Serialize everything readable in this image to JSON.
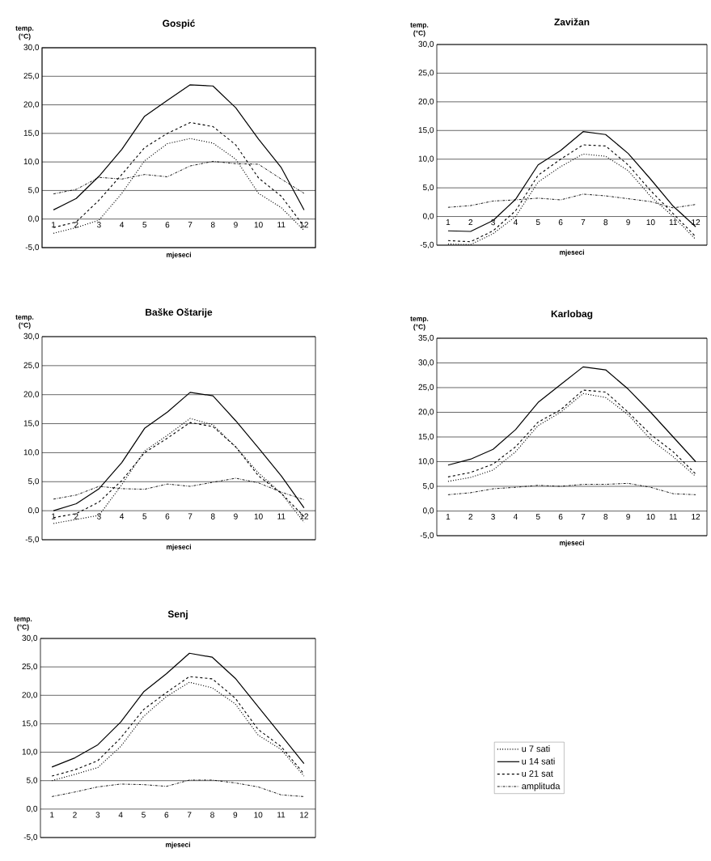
{
  "chart_data": [
    {
      "type": "line",
      "title": "Gospić",
      "xlabel": "mjeseci",
      "ylabel": "temp. (°C)",
      "categories": [
        "1",
        "2",
        "3",
        "4",
        "5",
        "6",
        "7",
        "8",
        "9",
        "10",
        "11",
        "12"
      ],
      "ylim": [
        -5,
        30
      ],
      "yticks": [
        {
          "value": -5,
          "label": "-5,0"
        },
        {
          "value": 0,
          "label": "0,0"
        },
        {
          "value": 5,
          "label": "5,0"
        },
        {
          "value": 10,
          "label": "10,0"
        },
        {
          "value": 15,
          "label": "15,0"
        },
        {
          "value": 20,
          "label": "20,0"
        },
        {
          "value": 25,
          "label": "25,0"
        },
        {
          "value": 30,
          "label": "30,0"
        }
      ],
      "grid": "y",
      "series": [
        {
          "color": "#000000",
          "line_style": "dotted",
          "values": [
            -2.5,
            -1.5,
            -0.2,
            4.5,
            10.2,
            13.2,
            14.1,
            13.3,
            10.5,
            4.5,
            2.0,
            -2.0
          ]
        },
        {
          "color": "#000000",
          "line_style": "solid",
          "values": [
            1.6,
            3.6,
            7.5,
            12.2,
            18.0,
            20.8,
            23.5,
            23.3,
            19.5,
            14.0,
            9.0,
            1.6
          ]
        },
        {
          "color": "#000000",
          "line_style": "dashed",
          "values": [
            -1.5,
            -0.5,
            3.3,
            7.8,
            12.5,
            15.0,
            16.9,
            16.2,
            13.0,
            7.2,
            4.0,
            -1.3
          ]
        },
        {
          "color": "#000000",
          "line_style": "dashdot",
          "values": [
            4.4,
            5.2,
            7.3,
            7.0,
            7.8,
            7.4,
            9.3,
            10.1,
            9.7,
            9.6,
            7.0,
            4.5
          ]
        }
      ]
    },
    {
      "type": "line",
      "title": "Zavižan",
      "xlabel": "mjeseci",
      "ylabel": "temp. (°C)",
      "categories": [
        "1",
        "2",
        "3",
        "4",
        "5",
        "6",
        "7",
        "8",
        "9",
        "10",
        "11",
        "12"
      ],
      "ylim": [
        -5,
        30
      ],
      "yticks": [
        {
          "value": -5,
          "label": "-5,0"
        },
        {
          "value": 0,
          "label": "0,0"
        },
        {
          "value": 5,
          "label": "5,0"
        },
        {
          "value": 10,
          "label": "10,0"
        },
        {
          "value": 15,
          "label": "15,0"
        },
        {
          "value": 20,
          "label": "20,0"
        },
        {
          "value": 25,
          "label": "25,0"
        },
        {
          "value": 30,
          "label": "30,0"
        }
      ],
      "grid": "y",
      "series": [
        {
          "color": "#000000",
          "line_style": "dotted",
          "values": [
            -4.8,
            -4.9,
            -3.0,
            0.0,
            6.0,
            8.7,
            10.9,
            10.5,
            8.0,
            3.5,
            0.0,
            -4.0
          ]
        },
        {
          "color": "#000000",
          "line_style": "solid",
          "values": [
            -2.5,
            -2.6,
            -0.7,
            3.0,
            9.0,
            11.5,
            14.8,
            14.3,
            11.0,
            6.5,
            1.8,
            -1.8
          ]
        },
        {
          "color": "#000000",
          "line_style": "dashed",
          "values": [
            -4.2,
            -4.4,
            -2.5,
            1.0,
            7.2,
            10.0,
            12.5,
            12.3,
            9.0,
            4.5,
            0.5,
            -3.5
          ]
        },
        {
          "color": "#000000",
          "line_style": "dashdot",
          "values": [
            1.6,
            1.9,
            2.7,
            2.9,
            3.2,
            2.9,
            3.9,
            3.6,
            3.1,
            2.6,
            1.5,
            2.1
          ]
        }
      ]
    },
    {
      "type": "line",
      "title": "Baške Oštarije",
      "xlabel": "mjeseci",
      "ylabel": "temp. (°C)",
      "categories": [
        "1",
        "2",
        "3",
        "4",
        "5",
        "6",
        "7",
        "8",
        "9",
        "10",
        "11",
        "12"
      ],
      "ylim": [
        -5,
        30
      ],
      "yticks": [
        {
          "value": -5,
          "label": "-5,0"
        },
        {
          "value": 0,
          "label": "0,0"
        },
        {
          "value": 5,
          "label": "5,0"
        },
        {
          "value": 10,
          "label": "10,0"
        },
        {
          "value": 15,
          "label": "15,0"
        },
        {
          "value": 20,
          "label": "20,0"
        },
        {
          "value": 25,
          "label": "25,0"
        },
        {
          "value": 30,
          "label": "30,0"
        }
      ],
      "grid": "y",
      "series": [
        {
          "color": "#000000",
          "line_style": "dotted",
          "values": [
            -2.2,
            -1.5,
            -0.8,
            4.5,
            10.3,
            13.0,
            15.9,
            14.8,
            11.0,
            6.5,
            3.0,
            -2.0
          ]
        },
        {
          "color": "#000000",
          "line_style": "solid",
          "values": [
            0.0,
            1.2,
            3.8,
            8.3,
            14.2,
            17.0,
            20.4,
            19.8,
            15.5,
            10.8,
            6.0,
            0.5
          ]
        },
        {
          "color": "#000000",
          "line_style": "dashed",
          "values": [
            -1.2,
            -0.5,
            1.5,
            5.2,
            10.0,
            12.5,
            15.2,
            14.5,
            11.0,
            6.0,
            3.0,
            -1.0
          ]
        },
        {
          "color": "#000000",
          "line_style": "dashdot",
          "values": [
            2.0,
            2.7,
            4.2,
            3.8,
            3.7,
            4.6,
            4.2,
            4.9,
            5.6,
            4.8,
            3.2,
            1.9
          ]
        }
      ]
    },
    {
      "type": "line",
      "title": "Karlobag",
      "xlabel": "mjeseci",
      "ylabel": "temp. (°C)",
      "categories": [
        "1",
        "2",
        "3",
        "4",
        "5",
        "6",
        "7",
        "8",
        "9",
        "10",
        "11",
        "12"
      ],
      "ylim": [
        -5,
        35
      ],
      "yticks": [
        {
          "value": -5,
          "label": "-5,0"
        },
        {
          "value": 0,
          "label": "0,0"
        },
        {
          "value": 5,
          "label": "5,0"
        },
        {
          "value": 10,
          "label": "10,0"
        },
        {
          "value": 15,
          "label": "15,0"
        },
        {
          "value": 20,
          "label": "20,0"
        },
        {
          "value": 25,
          "label": "25,0"
        },
        {
          "value": 30,
          "label": "30,0"
        },
        {
          "value": 35,
          "label": "35,0"
        }
      ],
      "grid": "y",
      "series": [
        {
          "color": "#000000",
          "line_style": "dotted",
          "values": [
            6.0,
            6.8,
            8.3,
            12.0,
            17.3,
            20.0,
            23.8,
            23.0,
            19.5,
            14.5,
            11.0,
            7.0
          ]
        },
        {
          "color": "#000000",
          "line_style": "solid",
          "values": [
            9.3,
            10.5,
            12.5,
            16.5,
            22.0,
            25.6,
            29.2,
            28.6,
            24.7,
            20.0,
            15.0,
            10.0
          ]
        },
        {
          "color": "#000000",
          "line_style": "dashed",
          "values": [
            6.9,
            7.8,
            9.5,
            13.0,
            18.0,
            20.5,
            24.5,
            24.1,
            20.0,
            15.5,
            12.0,
            7.5
          ]
        },
        {
          "color": "#000000",
          "line_style": "dashdot",
          "values": [
            3.3,
            3.7,
            4.5,
            4.8,
            5.2,
            5.0,
            5.4,
            5.4,
            5.6,
            4.8,
            3.5,
            3.3
          ]
        }
      ]
    },
    {
      "type": "line",
      "title": "Senj",
      "xlabel": "mjeseci",
      "ylabel": "temp. (°C)",
      "categories": [
        "1",
        "2",
        "3",
        "4",
        "5",
        "6",
        "7",
        "8",
        "9",
        "10",
        "11",
        "12"
      ],
      "ylim": [
        -5,
        30
      ],
      "yticks": [
        {
          "value": -5,
          "label": "-5,0"
        },
        {
          "value": 0,
          "label": "0,0"
        },
        {
          "value": 5,
          "label": "5,0"
        },
        {
          "value": 10,
          "label": "10,0"
        },
        {
          "value": 15,
          "label": "15,0"
        },
        {
          "value": 20,
          "label": "20,0"
        },
        {
          "value": 25,
          "label": "25,0"
        },
        {
          "value": 30,
          "label": "30,0"
        }
      ],
      "grid": "y",
      "legend": "right",
      "series": [
        {
          "name": "u 7 sati",
          "color": "#000000",
          "line_style": "dotted",
          "values": [
            5.0,
            6.1,
            7.3,
            11.0,
            16.3,
            19.8,
            22.3,
            21.3,
            18.5,
            13.0,
            10.5,
            5.8
          ]
        },
        {
          "name": "u 14 sati",
          "color": "#000000",
          "line_style": "solid",
          "values": [
            7.4,
            9.0,
            11.3,
            15.3,
            20.6,
            23.8,
            27.4,
            26.7,
            23.0,
            18.0,
            13.0,
            8.0
          ]
        },
        {
          "name": "u 21 sat",
          "color": "#000000",
          "line_style": "dashed",
          "values": [
            5.8,
            6.9,
            8.5,
            12.5,
            17.5,
            20.5,
            23.3,
            22.9,
            19.5,
            14.0,
            11.0,
            6.2
          ]
        },
        {
          "name": "amplituda",
          "color": "#000000",
          "line_style": "dashdot",
          "values": [
            2.2,
            3.0,
            3.9,
            4.4,
            4.3,
            4.0,
            5.1,
            5.1,
            4.6,
            3.9,
            2.5,
            2.2
          ]
        }
      ]
    }
  ]
}
